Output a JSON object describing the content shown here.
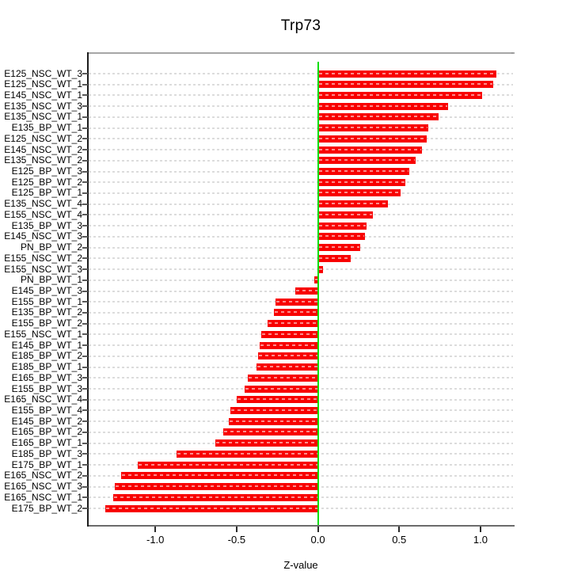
{
  "chart_data": {
    "type": "bar",
    "orientation": "horizontal",
    "title": "Trp73",
    "xlabel": "Z-value",
    "categories": [
      "E125_NSC_WT_3",
      "E125_NSC_WT_1",
      "E145_NSC_WT_1",
      "E135_NSC_WT_3",
      "E135_NSC_WT_1",
      "E135_BP_WT_1",
      "E125_NSC_WT_2",
      "E145_NSC_WT_2",
      "E135_NSC_WT_2",
      "E125_BP_WT_3",
      "E125_BP_WT_2",
      "E125_BP_WT_1",
      "E135_NSC_WT_4",
      "E155_NSC_WT_4",
      "E135_BP_WT_3",
      "E145_NSC_WT_3",
      "PN_BP_WT_2",
      "E155_NSC_WT_2",
      "E155_NSC_WT_3",
      "PN_BP_WT_1",
      "E145_BP_WT_3",
      "E155_BP_WT_1",
      "E135_BP_WT_2",
      "E155_BP_WT_2",
      "E155_NSC_WT_1",
      "E145_BP_WT_1",
      "E185_BP_WT_2",
      "E185_BP_WT_1",
      "E165_BP_WT_3",
      "E155_BP_WT_3",
      "E165_NSC_WT_4",
      "E155_BP_WT_4",
      "E145_BP_WT_2",
      "E165_BP_WT_2",
      "E165_BP_WT_1",
      "E185_BP_WT_3",
      "E175_BP_WT_1",
      "E165_NSC_WT_2",
      "E165_NSC_WT_3",
      "E165_NSC_WT_1",
      "E175_BP_WT_2"
    ],
    "values": [
      1.1,
      1.08,
      1.01,
      0.8,
      0.74,
      0.68,
      0.67,
      0.64,
      0.6,
      0.56,
      0.54,
      0.51,
      0.43,
      0.34,
      0.3,
      0.29,
      0.26,
      0.2,
      0.03,
      -0.02,
      -0.14,
      -0.26,
      -0.27,
      -0.31,
      -0.35,
      -0.36,
      -0.37,
      -0.38,
      -0.43,
      -0.45,
      -0.5,
      -0.54,
      -0.55,
      -0.58,
      -0.63,
      -0.87,
      -1.11,
      -1.21,
      -1.25,
      -1.26,
      -1.31
    ],
    "xticks": {
      "values": [
        -1.0,
        -0.5,
        0.0,
        0.5,
        1.0
      ],
      "labels": [
        "-1.0",
        "-0.5",
        "0.0",
        "0.5",
        "1.0"
      ]
    },
    "xlim": [
      -1.41,
      1.2
    ],
    "grid": "horizontal-dashed",
    "zero_line": true,
    "legend": "none"
  },
  "colors": {
    "bar": "#f80000",
    "bar_dash": "rgba(255,255,255,0.55)",
    "gridline": "#dcdcdc",
    "zero_line": "#00dd00",
    "text": "#000000"
  }
}
